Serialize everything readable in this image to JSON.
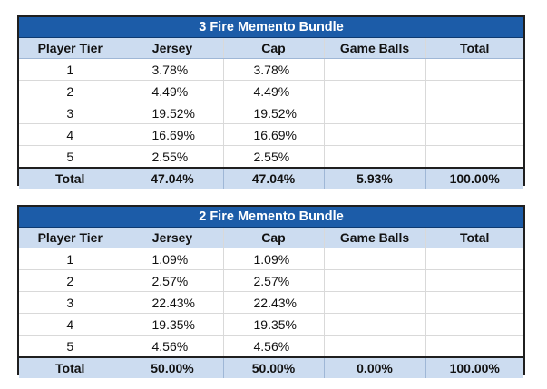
{
  "tables": [
    {
      "title": "3 Fire Memento Bundle",
      "headers": [
        "Player Tier",
        "Jersey",
        "Cap",
        "Game Balls",
        "Total"
      ],
      "rows": [
        [
          "1",
          "3.78%",
          "3.78%",
          "",
          ""
        ],
        [
          "2",
          "4.49%",
          "4.49%",
          "",
          ""
        ],
        [
          "3",
          "19.52%",
          "19.52%",
          "",
          ""
        ],
        [
          "4",
          "16.69%",
          "16.69%",
          "",
          ""
        ],
        [
          "5",
          "2.55%",
          "2.55%",
          "",
          ""
        ]
      ],
      "totals": [
        "Total",
        "47.04%",
        "47.04%",
        "5.93%",
        "100.00%"
      ]
    },
    {
      "title": "2 Fire Memento Bundle",
      "headers": [
        "Player Tier",
        "Jersey",
        "Cap",
        "Game Balls",
        "Total"
      ],
      "rows": [
        [
          "1",
          "1.09%",
          "1.09%",
          "",
          ""
        ],
        [
          "2",
          "2.57%",
          "2.57%",
          "",
          ""
        ],
        [
          "3",
          "22.43%",
          "22.43%",
          "",
          ""
        ],
        [
          "4",
          "19.35%",
          "19.35%",
          "",
          ""
        ],
        [
          "5",
          "4.56%",
          "4.56%",
          "",
          ""
        ]
      ],
      "totals": [
        "Total",
        "50.00%",
        "50.00%",
        "0.00%",
        "100.00%"
      ]
    }
  ],
  "colors": {
    "title_bg": "#1c5ca8",
    "title_text": "#ffffff",
    "header_bg": "#ccdcf0",
    "border": "#1f1f1f"
  }
}
